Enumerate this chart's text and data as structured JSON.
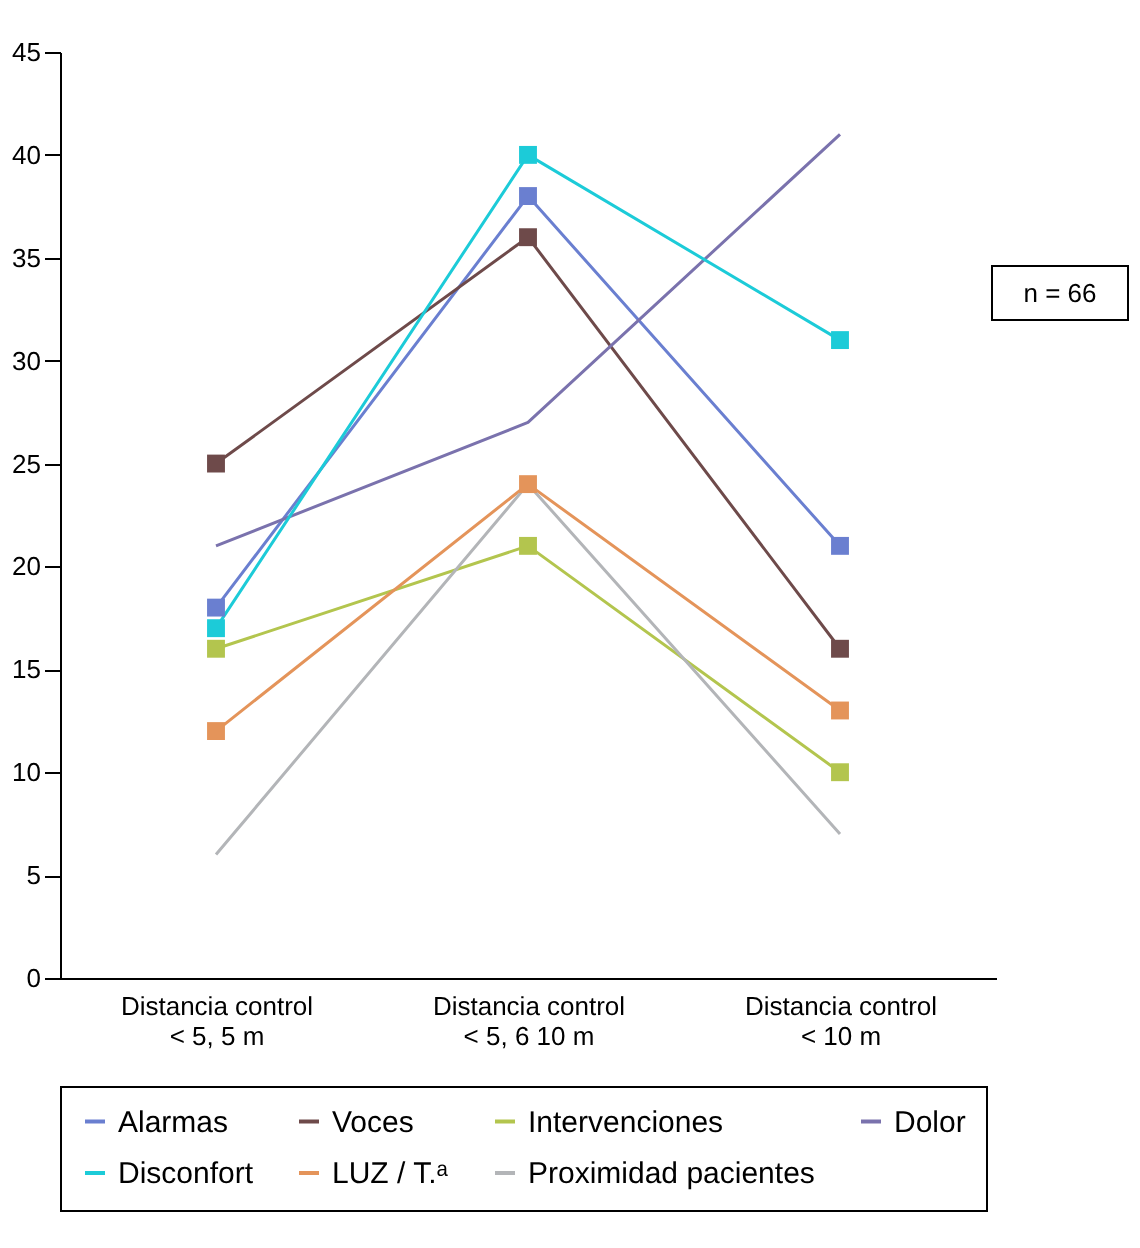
{
  "chart_data": {
    "type": "line",
    "categories": [
      "Distancia control\n< 5, 5 m",
      "Distancia control\n< 5, 6   10 m",
      "Distancia control\n< 10 m"
    ],
    "ylim": [
      0,
      45
    ],
    "yticks": [
      0,
      5,
      10,
      15,
      20,
      25,
      30,
      35,
      40,
      45
    ],
    "grid": false,
    "legend": "bottom",
    "line_style": "solid",
    "annotations": [
      "n = 66"
    ],
    "series": [
      {
        "name": "Alarmas",
        "color": "#6a7fd0",
        "marker": "square",
        "values": [
          18,
          38,
          21
        ]
      },
      {
        "name": "Voces",
        "color": "#6e4a4a",
        "marker": "square",
        "values": [
          25,
          36,
          16
        ]
      },
      {
        "name": "Intervenciones",
        "color": "#b3c54e",
        "marker": "square",
        "values": [
          16,
          21,
          10
        ]
      },
      {
        "name": "Dolor",
        "color": "#7a72ad",
        "marker": "none",
        "values": [
          21,
          27,
          41
        ]
      },
      {
        "name": "Disconfort",
        "color": "#1ccbd8",
        "marker": "square",
        "values": [
          17,
          40,
          31
        ]
      },
      {
        "name": "LUZ / T.ᵃ",
        "color": "#e4945a",
        "marker": "square",
        "values": [
          12,
          24,
          13
        ]
      },
      {
        "name": "Proximidad pacientes",
        "color": "#b3b5b8",
        "marker": "none",
        "values": [
          6,
          24,
          7
        ]
      }
    ]
  }
}
